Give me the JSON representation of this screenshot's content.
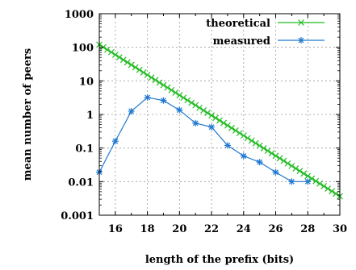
{
  "chart_data": {
    "type": "line",
    "xlabel": "length of the prefix (bits)",
    "ylabel": "mean number of peers",
    "xlim": [
      15,
      30
    ],
    "ylim": [
      0.001,
      1000
    ],
    "yscale": "log",
    "grid": true,
    "legend_position": "top-right",
    "xticks": [
      16,
      18,
      20,
      22,
      24,
      26,
      28,
      30
    ],
    "yticks": [
      {
        "value": 0.001,
        "label": "0.001"
      },
      {
        "value": 0.01,
        "label": "0.01"
      },
      {
        "value": 0.1,
        "label": "0.1"
      },
      {
        "value": 1,
        "label": "1"
      },
      {
        "value": 10,
        "label": "10"
      },
      {
        "value": 100,
        "label": "100"
      },
      {
        "value": 1000,
        "label": "1000"
      }
    ],
    "series": [
      {
        "name": "theoretical",
        "color": "#22bb22",
        "marker": "x",
        "x": [
          15,
          15.25,
          15.5,
          15.75,
          16,
          16.25,
          16.5,
          16.75,
          17,
          17.25,
          17.5,
          17.75,
          18,
          18.25,
          18.5,
          18.75,
          19,
          19.25,
          19.5,
          19.75,
          20,
          20.25,
          20.5,
          20.75,
          21,
          21.25,
          21.5,
          21.75,
          22,
          22.25,
          22.5,
          22.75,
          23,
          23.25,
          23.5,
          23.75,
          24,
          24.25,
          24.5,
          24.75,
          25,
          25.25,
          25.5,
          25.75,
          26,
          26.25,
          26.5,
          26.75,
          27,
          27.25,
          27.5,
          27.75,
          28,
          28.25,
          28.5,
          28.75,
          29,
          29.25,
          29.5,
          29.75,
          30
        ],
        "y": [
          120,
          100.9,
          84.9,
          71.4,
          60,
          50.5,
          42.4,
          35.7,
          30,
          25.2,
          21.2,
          17.8,
          15,
          12.6,
          10.6,
          8.92,
          7.5,
          6.31,
          5.3,
          4.46,
          3.75,
          3.15,
          2.65,
          2.23,
          1.875,
          1.577,
          1.326,
          1.115,
          0.9375,
          0.7884,
          0.6629,
          0.5575,
          0.4688,
          0.3942,
          0.3315,
          0.2787,
          0.2344,
          0.1971,
          0.1657,
          0.1394,
          0.1172,
          0.09855,
          0.08287,
          0.06969,
          0.0586,
          0.04928,
          0.04144,
          0.03484,
          0.0293,
          0.02464,
          0.02072,
          0.01742,
          0.01465,
          0.01232,
          0.01036,
          0.00871,
          0.00732,
          0.00616,
          0.00518,
          0.00436,
          0.00366
        ]
      },
      {
        "name": "measured",
        "color": "#1f78d0",
        "marker": "*",
        "x": [
          15,
          16,
          17,
          18,
          19,
          20,
          21,
          22,
          23,
          24,
          25,
          26,
          27,
          28
        ],
        "y": [
          0.019,
          0.16,
          1.25,
          3.2,
          2.6,
          1.35,
          0.55,
          0.42,
          0.12,
          0.058,
          0.038,
          0.019,
          0.01,
          0.01
        ]
      }
    ]
  }
}
